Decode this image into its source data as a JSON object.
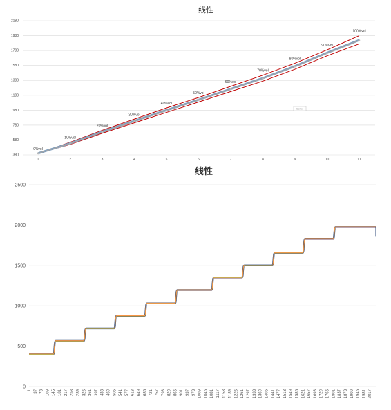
{
  "chart_data": [
    {
      "type": "line",
      "title": "线性",
      "xlabel": "",
      "ylabel": "",
      "categories": [
        "1",
        "2",
        "3",
        "4",
        "5",
        "6",
        "7",
        "8",
        "9",
        "10",
        "11"
      ],
      "yticks": [
        380,
        580,
        780,
        980,
        1180,
        1380,
        1580,
        1780,
        1980,
        2180
      ],
      "ylim": [
        380,
        2180
      ],
      "grid": true,
      "annotations": [
        "0%vol",
        "10%vol",
        "20%vol",
        "30%vol",
        "40%vol",
        "50%vol",
        "60%vol",
        "70%vol",
        "80%vol",
        "90%vol",
        "100%vol"
      ],
      "series": [
        {
          "values": [
            400,
            550,
            710,
            860,
            1010,
            1150,
            1300,
            1450,
            1610,
            1790,
            1980
          ],
          "color": "#c00000"
        },
        {
          "values": [
            400,
            520,
            670,
            810,
            950,
            1090,
            1230,
            1370,
            1530,
            1710,
            1870
          ],
          "color": "#c00000"
        },
        {
          "values": [
            400,
            535,
            690,
            835,
            980,
            1120,
            1265,
            1410,
            1570,
            1750,
            1920
          ],
          "color": "#7f9fbf"
        },
        {
          "values": [
            400,
            532,
            686,
            830,
            975,
            1117,
            1261,
            1406,
            1566,
            1745,
            1916
          ],
          "color": "#a5a5a5"
        }
      ],
      "legend_box": "Series"
    },
    {
      "type": "line",
      "title": "线性",
      "xlabel": "",
      "ylabel": "",
      "ylim": [
        0,
        2500
      ],
      "yticks": [
        0,
        500,
        1000,
        1500,
        2000,
        2500
      ],
      "grid": true,
      "xticks": [
        "1",
        "37",
        "73",
        "109",
        "145",
        "181",
        "217",
        "253",
        "289",
        "325",
        "361",
        "397",
        "433",
        "469",
        "505",
        "541",
        "577",
        "613",
        "649",
        "685",
        "721",
        "757",
        "793",
        "829",
        "865",
        "901",
        "937",
        "973",
        "1009",
        "1045",
        "1081",
        "1117",
        "1153",
        "1189",
        "1225",
        "1261",
        "1297",
        "1333",
        "1369",
        "1405",
        "1441",
        "1477",
        "1513",
        "1549",
        "1585",
        "1621",
        "1657",
        "1693",
        "1729",
        "1765",
        "1801",
        "1837",
        "1873",
        "1909",
        "1945",
        "1981",
        "2017"
      ],
      "x_range": [
        1,
        2053
      ],
      "steps": [
        {
          "x_start": 1,
          "x_end": 145,
          "value": 400
        },
        {
          "x_start": 145,
          "x_end": 325,
          "value": 565
        },
        {
          "x_start": 325,
          "x_end": 505,
          "value": 720
        },
        {
          "x_start": 505,
          "x_end": 685,
          "value": 875
        },
        {
          "x_start": 685,
          "x_end": 865,
          "value": 1030
        },
        {
          "x_start": 865,
          "x_end": 1081,
          "value": 1195
        },
        {
          "x_start": 1081,
          "x_end": 1261,
          "value": 1350
        },
        {
          "x_start": 1261,
          "x_end": 1441,
          "value": 1500
        },
        {
          "x_start": 1441,
          "x_end": 1621,
          "value": 1655
        },
        {
          "x_start": 1621,
          "x_end": 1801,
          "value": 1830
        },
        {
          "x_start": 1801,
          "x_end": 2053,
          "value": 1975
        }
      ],
      "series_colors": [
        "#2e4a7a",
        "#c0504d",
        "#9bbb59",
        "#f79646"
      ]
    }
  ]
}
